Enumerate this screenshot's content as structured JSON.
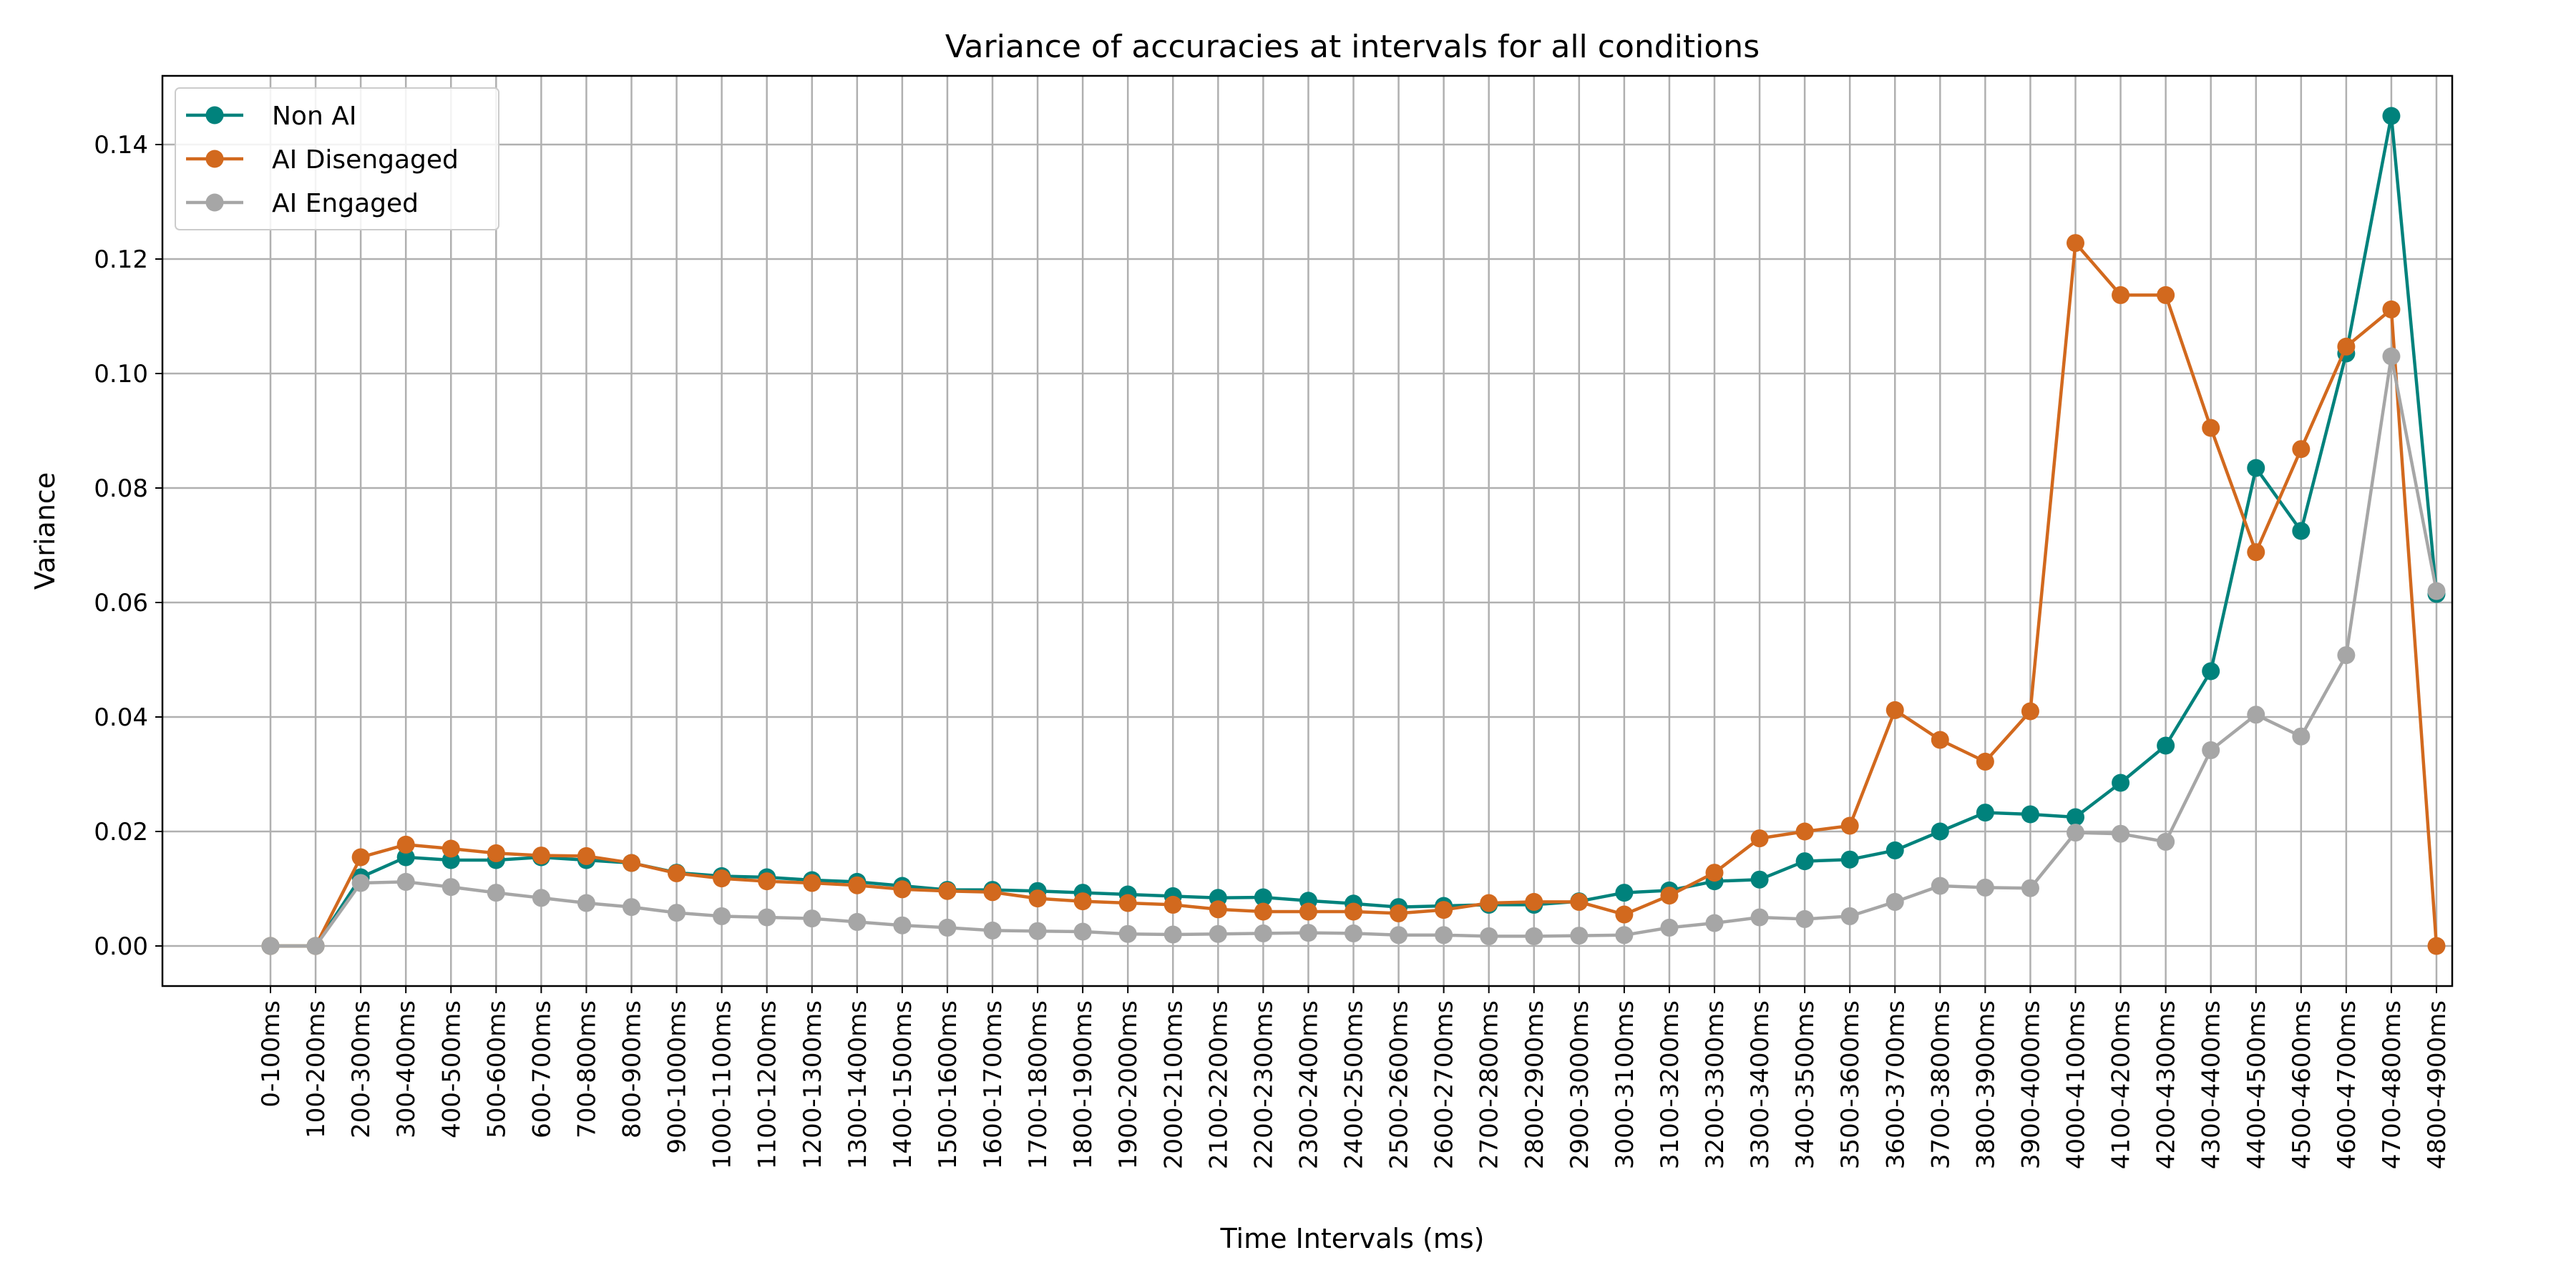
{
  "chart_data": {
    "type": "line",
    "title": "Variance of accuracies at intervals for all conditions",
    "xlabel": "Time Intervals (ms)",
    "ylabel": "Variance",
    "ylim": [
      -0.007,
      0.152
    ],
    "yticks": [
      "0.00",
      "0.02",
      "0.04",
      "0.06",
      "0.08",
      "0.10",
      "0.12",
      "0.14"
    ],
    "grid": true,
    "legend_position": "top-left",
    "categories": [
      "0-100ms",
      "100-200ms",
      "200-300ms",
      "300-400ms",
      "400-500ms",
      "500-600ms",
      "600-700ms",
      "700-800ms",
      "800-900ms",
      "900-1000ms",
      "1000-1100ms",
      "1100-1200ms",
      "1200-1300ms",
      "1300-1400ms",
      "1400-1500ms",
      "1500-1600ms",
      "1600-1700ms",
      "1700-1800ms",
      "1800-1900ms",
      "1900-2000ms",
      "2000-2100ms",
      "2100-2200ms",
      "2200-2300ms",
      "2300-2400ms",
      "2400-2500ms",
      "2500-2600ms",
      "2600-2700ms",
      "2700-2800ms",
      "2800-2900ms",
      "2900-3000ms",
      "3000-3100ms",
      "3100-3200ms",
      "3200-3300ms",
      "3300-3400ms",
      "3400-3500ms",
      "3500-3600ms",
      "3600-3700ms",
      "3700-3800ms",
      "3800-3900ms",
      "3900-4000ms",
      "4000-4100ms",
      "4100-4200ms",
      "4200-4300ms",
      "4300-4400ms",
      "4400-4500ms",
      "4500-4600ms",
      "4600-4700ms",
      "4700-4800ms",
      "4800-4900ms"
    ],
    "series": [
      {
        "name": "Non AI",
        "color": "#00827c",
        "values": [
          0.0,
          0.0,
          0.012,
          0.0155,
          0.015,
          0.015,
          0.0155,
          0.015,
          0.0145,
          0.0128,
          0.0122,
          0.012,
          0.0115,
          0.0112,
          0.0105,
          0.0098,
          0.0098,
          0.0096,
          0.0093,
          0.009,
          0.0087,
          0.0084,
          0.0085,
          0.0079,
          0.0074,
          0.0068,
          0.007,
          0.0072,
          0.0072,
          0.0078,
          0.0093,
          0.0097,
          0.0113,
          0.0116,
          0.0148,
          0.0151,
          0.0167,
          0.02,
          0.0233,
          0.023,
          0.0225,
          0.0285,
          0.035,
          0.048,
          0.0835,
          0.0725,
          0.1035,
          0.145,
          0.0615
        ]
      },
      {
        "name": "AI Disengaged",
        "color": "#d2691e",
        "values": [
          0.0,
          0.0,
          0.0155,
          0.0177,
          0.017,
          0.0162,
          0.0158,
          0.0157,
          0.0145,
          0.0127,
          0.0118,
          0.0113,
          0.011,
          0.0106,
          0.0099,
          0.0096,
          0.0094,
          0.0083,
          0.0078,
          0.0075,
          0.0072,
          0.0064,
          0.006,
          0.006,
          0.006,
          0.0057,
          0.0063,
          0.0075,
          0.0077,
          0.0077,
          0.0055,
          0.0088,
          0.0128,
          0.0188,
          0.02,
          0.021,
          0.0412,
          0.036,
          0.0322,
          0.041,
          0.1228,
          0.1137,
          0.1137,
          0.0905,
          0.0688,
          0.0868,
          0.1047,
          0.1112,
          0.0
        ]
      },
      {
        "name": "AI Engaged",
        "color": "#a6a6a6",
        "values": [
          0.0,
          0.0,
          0.011,
          0.0112,
          0.0103,
          0.0093,
          0.0084,
          0.0075,
          0.0068,
          0.0058,
          0.0052,
          0.005,
          0.0048,
          0.0042,
          0.0036,
          0.0032,
          0.0027,
          0.0026,
          0.0025,
          0.0021,
          0.002,
          0.0021,
          0.0022,
          0.0023,
          0.0022,
          0.0019,
          0.0019,
          0.0017,
          0.0017,
          0.0018,
          0.0019,
          0.0032,
          0.004,
          0.005,
          0.0047,
          0.0052,
          0.0077,
          0.0105,
          0.0102,
          0.0101,
          0.0198,
          0.0196,
          0.0182,
          0.0342,
          0.0404,
          0.0366,
          0.0508,
          0.103,
          0.062
        ]
      }
    ]
  }
}
